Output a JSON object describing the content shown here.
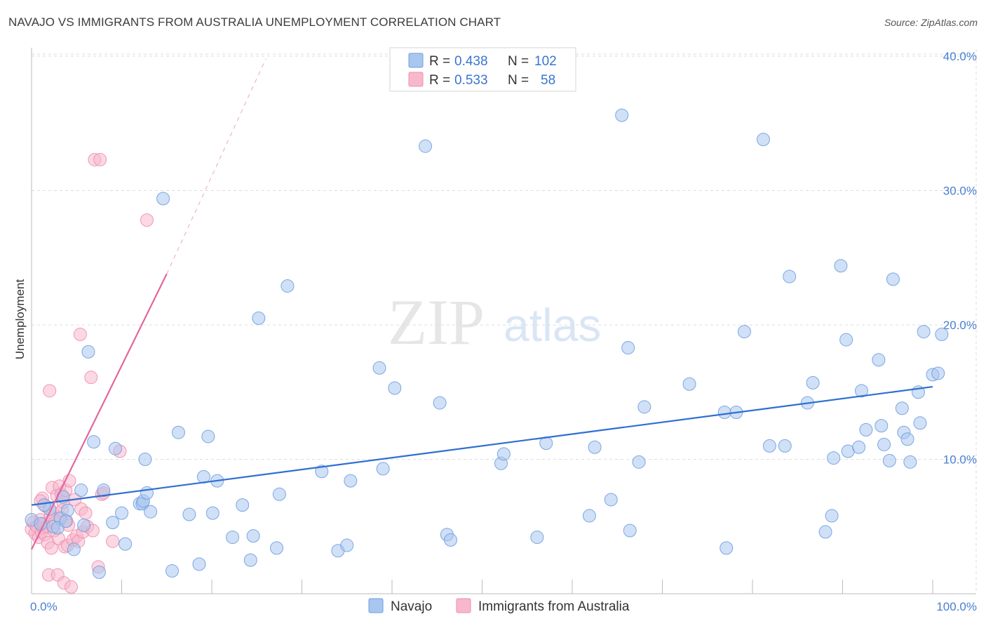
{
  "header": {
    "title": "NAVAJO VS IMMIGRANTS FROM AUSTRALIA UNEMPLOYMENT CORRELATION CHART",
    "source": "Source: ZipAtlas.com"
  },
  "colors": {
    "navajo_fill": "#a9c6ef",
    "navajo_stroke": "#6f9ee0",
    "navajo_line": "#2f6fd0",
    "australia_fill": "#f7b8cc",
    "australia_stroke": "#ec8fb0",
    "australia_line": "#e2679a",
    "tick_text": "#4a7fd0",
    "grid": "#dddddd"
  },
  "legend_box": {
    "rows": [
      {
        "r_label": "R = ",
        "r_value": "0.438",
        "n_label": "N = ",
        "n_value": "102"
      },
      {
        "r_label": "R = ",
        "r_value": "0.533",
        "n_label": "N = ",
        "n_value": "58"
      }
    ]
  },
  "watermark": {
    "zip": "ZIP",
    "atlas": "atlas"
  },
  "chart_data": {
    "type": "scatter",
    "title": "NAVAJO VS IMMIGRANTS FROM AUSTRALIA UNEMPLOYMENT CORRELATION CHART",
    "xlabel": "",
    "ylabel": "Unemployment",
    "xlim": [
      0,
      100
    ],
    "ylim": [
      0,
      41
    ],
    "x_tick_labels": [
      "0.0%",
      "100.0%"
    ],
    "y_ticks": [
      10,
      20,
      30,
      40
    ],
    "y_tick_labels": [
      "10.0%",
      "20.0%",
      "30.0%",
      "40.0%"
    ],
    "grid": true,
    "legend_position": "bottom-center",
    "series": [
      {
        "name": "Navajo",
        "R": 0.438,
        "N": 102,
        "trend": {
          "x": [
            0,
            100
          ],
          "y": [
            6.6,
            15.4
          ]
        },
        "points": [
          [
            0,
            5.5
          ],
          [
            1,
            5.2
          ],
          [
            2,
            6.3
          ],
          [
            2.4,
            5.0
          ],
          [
            3.2,
            5.6
          ],
          [
            3.5,
            7.2
          ],
          [
            4,
            6.2
          ],
          [
            4.7,
            3.3
          ],
          [
            5.5,
            7.7
          ],
          [
            5.8,
            5.1
          ],
          [
            6.3,
            18.0
          ],
          [
            6.9,
            11.3
          ],
          [
            7.5,
            1.6
          ],
          [
            8,
            7.7
          ],
          [
            9,
            5.3
          ],
          [
            9.3,
            10.8
          ],
          [
            10,
            6.0
          ],
          [
            10.4,
            3.7
          ],
          [
            12,
            6.7
          ],
          [
            12.3,
            6.7
          ],
          [
            12.4,
            6.9
          ],
          [
            12.6,
            10.0
          ],
          [
            12.8,
            7.5
          ],
          [
            13.2,
            6.1
          ],
          [
            14.6,
            29.4
          ],
          [
            15.6,
            1.7
          ],
          [
            16.3,
            12.0
          ],
          [
            17.5,
            5.9
          ],
          [
            18.6,
            2.2
          ],
          [
            19.1,
            8.7
          ],
          [
            19.6,
            11.7
          ],
          [
            20.1,
            6.0
          ],
          [
            20.6,
            8.4
          ],
          [
            22.3,
            4.2
          ],
          [
            23.4,
            6.6
          ],
          [
            24.3,
            2.5
          ],
          [
            24.6,
            4.3
          ],
          [
            25.2,
            20.5
          ],
          [
            27.2,
            3.4
          ],
          [
            27.5,
            7.4
          ],
          [
            28.4,
            22.9
          ],
          [
            32.2,
            9.1
          ],
          [
            34.0,
            3.2
          ],
          [
            35.0,
            3.6
          ],
          [
            35.4,
            8.4
          ],
          [
            38.6,
            16.8
          ],
          [
            39.0,
            9.3
          ],
          [
            40.3,
            15.3
          ],
          [
            43.7,
            33.3
          ],
          [
            45.3,
            14.2
          ],
          [
            46.1,
            4.4
          ],
          [
            46.5,
            4.0
          ],
          [
            52.1,
            9.7
          ],
          [
            52.4,
            10.4
          ],
          [
            56.1,
            4.2
          ],
          [
            57.1,
            11.2
          ],
          [
            61.9,
            5.8
          ],
          [
            62.5,
            10.9
          ],
          [
            64.3,
            7.0
          ],
          [
            65.5,
            35.6
          ],
          [
            66.2,
            18.3
          ],
          [
            66.4,
            4.7
          ],
          [
            67.4,
            9.8
          ],
          [
            68.0,
            13.9
          ],
          [
            73.0,
            15.6
          ],
          [
            76.9,
            13.5
          ],
          [
            77.1,
            3.4
          ],
          [
            78.2,
            13.5
          ],
          [
            79.1,
            19.5
          ],
          [
            81.2,
            33.8
          ],
          [
            81.9,
            11.0
          ],
          [
            83.6,
            11.0
          ],
          [
            84.1,
            23.6
          ],
          [
            86.1,
            14.2
          ],
          [
            86.7,
            15.7
          ],
          [
            88.1,
            4.6
          ],
          [
            88.8,
            5.8
          ],
          [
            89.0,
            10.1
          ],
          [
            89.8,
            24.4
          ],
          [
            90.4,
            18.9
          ],
          [
            90.6,
            10.6
          ],
          [
            91.8,
            10.9
          ],
          [
            92.1,
            15.1
          ],
          [
            92.6,
            12.2
          ],
          [
            94.0,
            17.4
          ],
          [
            94.3,
            12.5
          ],
          [
            94.6,
            11.1
          ],
          [
            95.2,
            9.9
          ],
          [
            95.6,
            23.4
          ],
          [
            96.6,
            13.8
          ],
          [
            96.8,
            12.0
          ],
          [
            97.2,
            11.5
          ],
          [
            97.5,
            9.8
          ],
          [
            98.4,
            15.0
          ],
          [
            98.6,
            12.7
          ],
          [
            99.0,
            19.5
          ],
          [
            100,
            16.3
          ],
          [
            100.6,
            16.4
          ],
          [
            101.0,
            19.3
          ],
          [
            1.4,
            6.6
          ],
          [
            2.9,
            4.9
          ],
          [
            3.8,
            5.4
          ]
        ]
      },
      {
        "name": "Immigrants from Australia",
        "R": 0.533,
        "N": 58,
        "trend": {
          "x": [
            0,
            15
          ],
          "y": [
            3.3,
            23.8
          ]
        },
        "trend_extension": {
          "x": [
            15,
            26
          ],
          "y": [
            23.8,
            39.8
          ]
        },
        "points": [
          [
            0,
            4.8
          ],
          [
            0.2,
            5.3
          ],
          [
            0.4,
            4.5
          ],
          [
            0.6,
            5.0
          ],
          [
            0.8,
            4.2
          ],
          [
            1.0,
            5.5
          ],
          [
            1.1,
            4.6
          ],
          [
            1.2,
            7.1
          ],
          [
            1.3,
            4.9
          ],
          [
            1.4,
            5.2
          ],
          [
            1.5,
            4.4
          ],
          [
            1.6,
            6.5
          ],
          [
            1.7,
            5.0
          ],
          [
            1.8,
            3.8
          ],
          [
            1.9,
            1.4
          ],
          [
            2.0,
            15.1
          ],
          [
            2.1,
            5.8
          ],
          [
            2.2,
            3.4
          ],
          [
            2.3,
            7.9
          ],
          [
            2.4,
            6.0
          ],
          [
            2.5,
            4.7
          ],
          [
            2.6,
            5.3
          ],
          [
            2.8,
            7.3
          ],
          [
            2.9,
            1.4
          ],
          [
            3.0,
            4.1
          ],
          [
            3.1,
            8.0
          ],
          [
            3.2,
            5.7
          ],
          [
            3.3,
            7.4
          ],
          [
            3.4,
            6.2
          ],
          [
            3.5,
            6.8
          ],
          [
            3.6,
            0.8
          ],
          [
            3.7,
            3.5
          ],
          [
            3.8,
            7.7
          ],
          [
            3.9,
            5.4
          ],
          [
            4.0,
            3.6
          ],
          [
            4.1,
            5.1
          ],
          [
            4.2,
            8.4
          ],
          [
            4.4,
            0.5
          ],
          [
            4.6,
            4.0
          ],
          [
            4.8,
            7.0
          ],
          [
            5.0,
            4.3
          ],
          [
            5.2,
            3.9
          ],
          [
            5.4,
            19.3
          ],
          [
            5.5,
            6.3
          ],
          [
            5.7,
            4.6
          ],
          [
            6.0,
            6.0
          ],
          [
            6.2,
            5.0
          ],
          [
            6.6,
            16.1
          ],
          [
            6.8,
            4.7
          ],
          [
            7.0,
            32.3
          ],
          [
            7.4,
            2.0
          ],
          [
            7.6,
            32.3
          ],
          [
            7.8,
            7.4
          ],
          [
            8.0,
            7.5
          ],
          [
            9.0,
            3.9
          ],
          [
            9.8,
            10.6
          ],
          [
            12.8,
            27.8
          ],
          [
            1.0,
            6.9
          ]
        ]
      }
    ]
  }
}
